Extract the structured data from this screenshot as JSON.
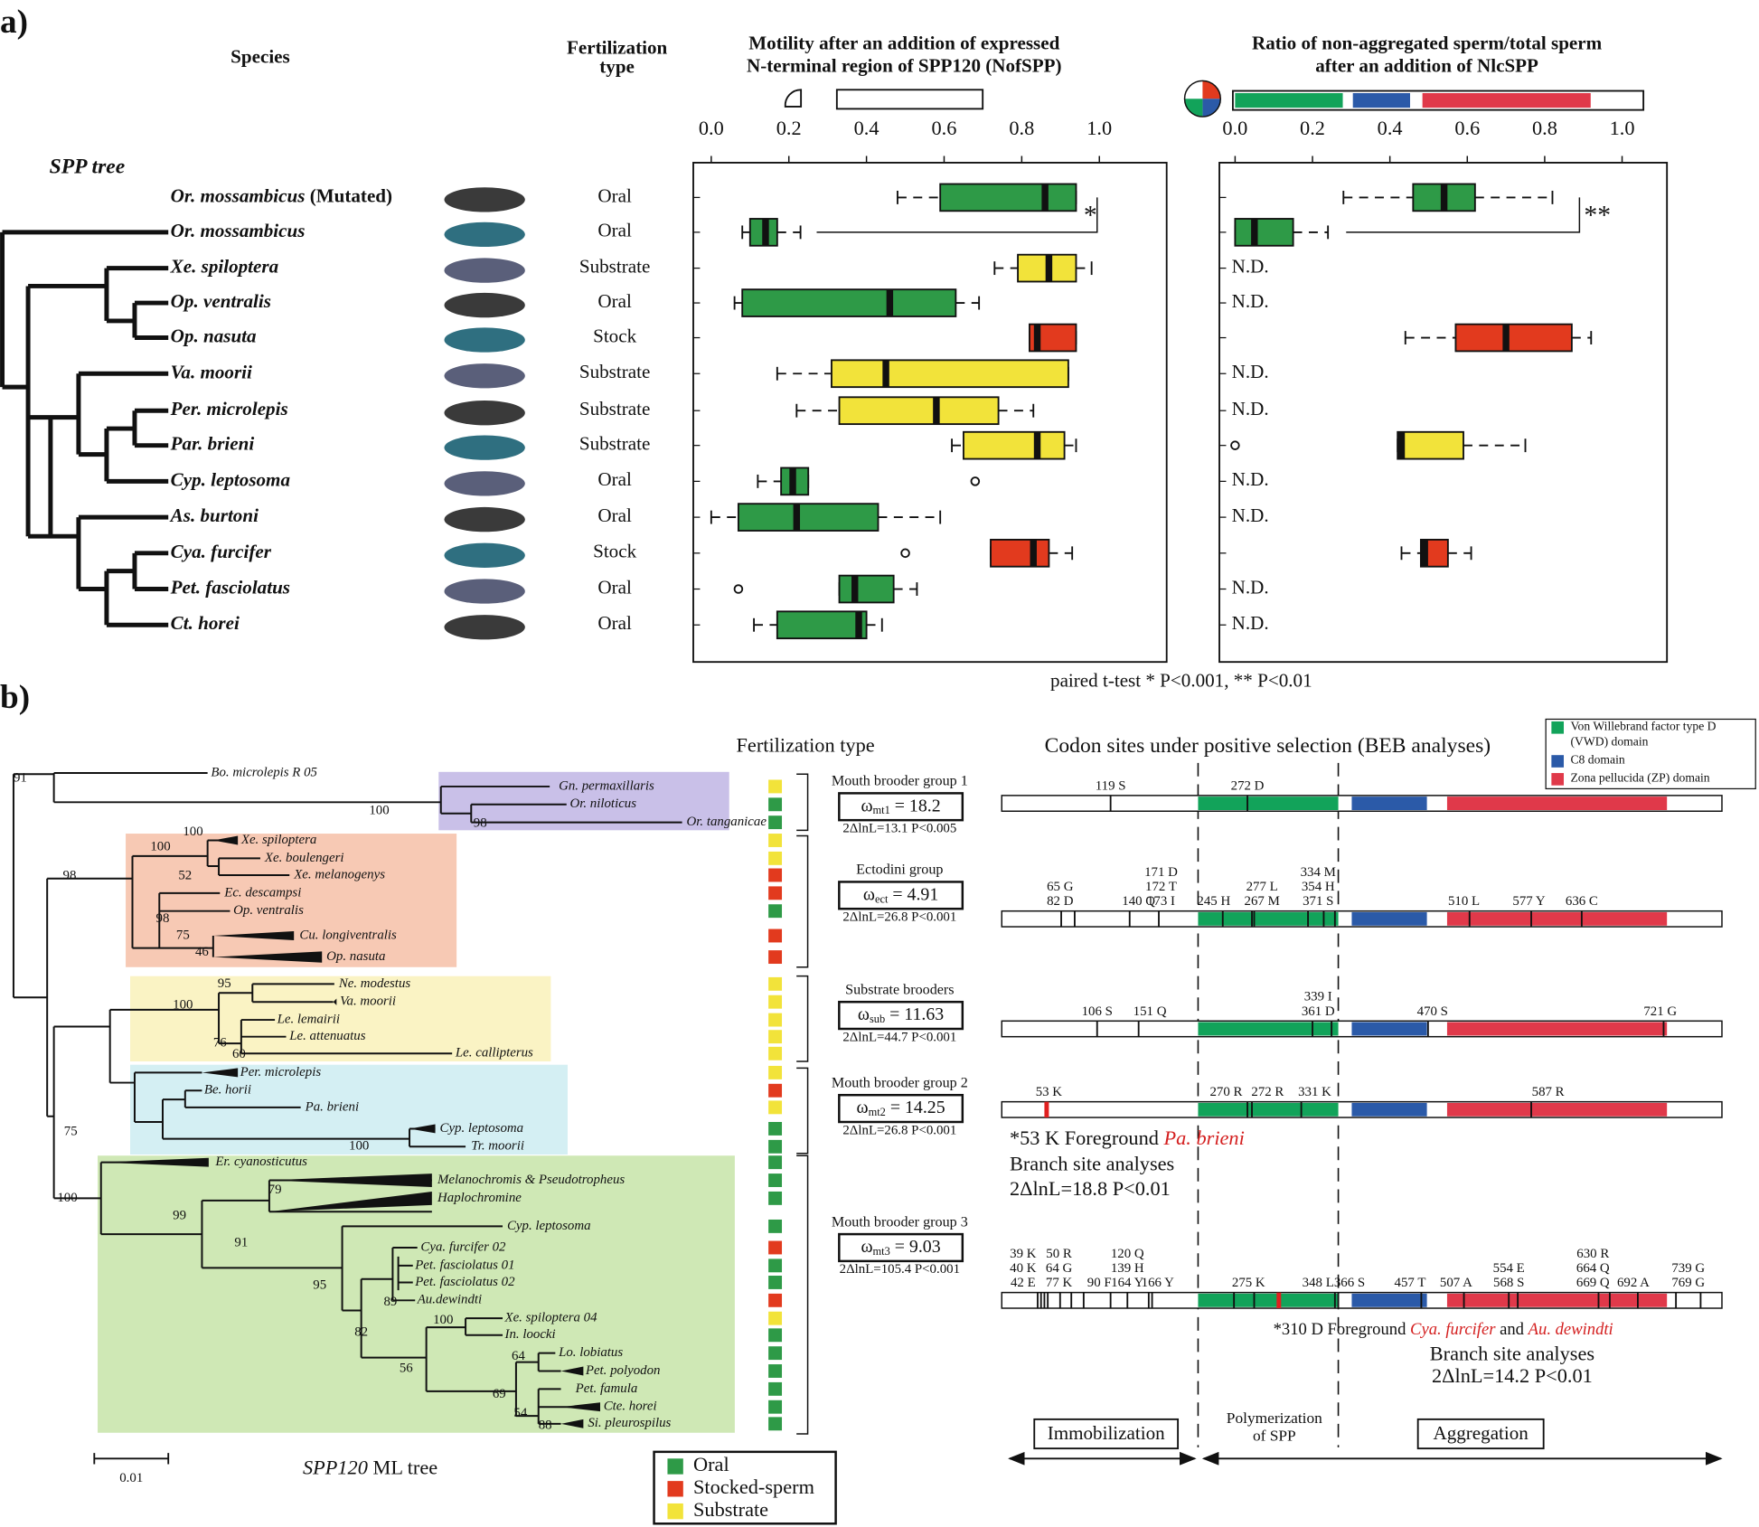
{
  "panel_a": {
    "label": "a)",
    "species_header": "Species",
    "fert_header": [
      "Fertilization",
      "type"
    ],
    "motility_header": [
      "Motility after an addition of expressed",
      "N-terminal region of SPP120 (NofSPP)"
    ],
    "ratio_header": [
      "Ratio of non-aggregated sperm/total sperm",
      "after an addition of NlcSPP"
    ],
    "tree_label": "SPP tree",
    "xlim": [
      0,
      1
    ],
    "xticks": [
      {
        "value": 0,
        "label": "0.0"
      },
      0.2,
      0.4,
      0.6,
      0.8,
      {
        "value": 1,
        "label": "1.0"
      }
    ],
    "rows": [
      {
        "species": "Or. mossambicus",
        "suffix": "(Mutated)",
        "fert": "Oral",
        "color": "#2e9a47",
        "motility": {
          "low": 0.48,
          "q1": 0.59,
          "median": 0.86,
          "q3": 0.94,
          "high": 0.94
        },
        "ratio": {
          "low": 0.28,
          "q1": 0.46,
          "median": 0.54,
          "q3": 0.62,
          "high": 0.82
        }
      },
      {
        "species": "Or. mossambicus",
        "fert": "Oral",
        "color": "#2e9a47",
        "motility": {
          "low": 0.08,
          "q1": 0.1,
          "median": 0.14,
          "q3": 0.17,
          "high": 0.23
        },
        "ratio": {
          "low": 0,
          "q1": 0,
          "median": 0.05,
          "q3": 0.15,
          "high": 0.24
        }
      },
      {
        "species": "Xe. spiloptera",
        "fert": "Substrate",
        "color": "#f2e33a",
        "motility": {
          "low": 0.73,
          "q1": 0.79,
          "median": 0.87,
          "q3": 0.94,
          "high": 0.98
        },
        "ratio": "N.D."
      },
      {
        "species": "Op. ventralis",
        "fert": "Oral",
        "color": "#2e9a47",
        "motility": {
          "low": 0.06,
          "q1": 0.08,
          "median": 0.46,
          "q3": 0.63,
          "high": 0.69
        },
        "ratio": "N.D."
      },
      {
        "species": "Op. nasuta",
        "fert": "Stock",
        "color": "#e23a1e",
        "motility": {
          "low": 0.82,
          "q1": 0.82,
          "median": 0.84,
          "q3": 0.94,
          "high": 0.94
        },
        "ratio": {
          "low": 0.44,
          "q1": 0.57,
          "median": 0.7,
          "q3": 0.87,
          "high": 0.92
        }
      },
      {
        "species": "Va. moorii",
        "fert": "Substrate",
        "color": "#f2e33a",
        "motility": {
          "low": 0.17,
          "q1": 0.31,
          "median": 0.45,
          "q3": 0.92,
          "high": 0.92
        },
        "ratio": "N.D."
      },
      {
        "species": "Per. microlepis",
        "fert": "Substrate",
        "color": "#f2e33a",
        "motility": {
          "low": 0.22,
          "q1": 0.33,
          "median": 0.58,
          "q3": 0.74,
          "high": 0.83
        },
        "ratio": "N.D."
      },
      {
        "species": "Par. brieni",
        "fert": "Substrate",
        "color": "#f2e33a",
        "motility": {
          "low": 0.62,
          "q1": 0.65,
          "median": 0.84,
          "q3": 0.91,
          "high": 0.94
        },
        "ratio": {
          "low": 0.42,
          "q1": 0.42,
          "median": 0.43,
          "q3": 0.59,
          "high": 0.75,
          "outliers": [
            0
          ]
        }
      },
      {
        "species": "Cyp. leptosoma",
        "fert": "Oral",
        "color": "#2e9a47",
        "motility": {
          "low": 0.12,
          "q1": 0.18,
          "median": 0.21,
          "q3": 0.25,
          "high": 0.25,
          "outliers": [
            0.68
          ]
        },
        "ratio": "N.D."
      },
      {
        "species": "As. burtoni",
        "fert": "Oral",
        "color": "#2e9a47",
        "motility": {
          "low": 0,
          "q1": 0.07,
          "median": 0.22,
          "q3": 0.43,
          "high": 0.59
        },
        "ratio": "N.D."
      },
      {
        "species": "Cya. furcifer",
        "fert": "Stock",
        "color": "#e23a1e",
        "motility": {
          "low": 0.72,
          "q1": 0.72,
          "median": 0.83,
          "q3": 0.87,
          "high": 0.93,
          "outliers": [
            0.5
          ]
        },
        "ratio": {
          "low": 0.43,
          "q1": 0.48,
          "median": 0.49,
          "q3": 0.55,
          "high": 0.61
        }
      },
      {
        "species": "Pet. fasciolatus",
        "fert": "Oral",
        "color": "#2e9a47",
        "motility": {
          "low": 0.33,
          "q1": 0.33,
          "median": 0.37,
          "q3": 0.47,
          "high": 0.53,
          "outliers": [
            0.07
          ]
        },
        "ratio": "N.D."
      },
      {
        "species": "Ct. horei",
        "fert": "Oral",
        "color": "#2e9a47",
        "motility": {
          "low": 0.11,
          "q1": 0.17,
          "median": 0.38,
          "q3": 0.4,
          "high": 0.44
        },
        "ratio": "N.D."
      }
    ],
    "sig_motility": "*",
    "sig_ratio": "**",
    "footnote": "paired t-test * P<0.001, ** P<0.01"
  },
  "panel_b": {
    "label": "b)",
    "fert_header": "Fertilization type",
    "tree_title": "SPP120",
    "tree_title_rest": "ML tree",
    "scale_label": "0.01",
    "tips": [
      {
        "label": "Bo. microlepis R 05"
      },
      {
        "label": "Gn. permaxillaris",
        "fert": 2
      },
      {
        "label": "Or. niloticus",
        "fert": 0
      },
      {
        "label": "Or. tanganicae",
        "fert": 0
      },
      {
        "label": "Xe. spiloptera",
        "fert": 2
      },
      {
        "label": "Xe. boulengeri",
        "fert": 2
      },
      {
        "label": "Xe. melanogenys",
        "fert": 1
      },
      {
        "label": "Ec. descampsi",
        "fert": 1
      },
      {
        "label": "Op. ventralis",
        "fert": 0,
        "color": "#d42020"
      },
      {
        "label": "Cu. longiventralis",
        "fert": 1
      },
      {
        "label": "Op. nasuta",
        "fert": 1
      },
      {
        "label": "Ne. modestus",
        "fert": 2
      },
      {
        "label": "Va. moorii",
        "fert": 2
      },
      {
        "label": "Le. lemairii",
        "fert": 2
      },
      {
        "label": "Le. attenuatus",
        "fert": 2
      },
      {
        "label": "Le. callipterus",
        "fert": 2
      },
      {
        "label": "Per. microlepis",
        "fert": 2
      },
      {
        "label": "Be. horii",
        "fert": 1
      },
      {
        "label": "Pa. brieni",
        "fert": 2,
        "color": "#d42020"
      },
      {
        "label": "Cyp. leptosoma",
        "fert": 0
      },
      {
        "label": "Tr. moorii",
        "fert": 0
      },
      {
        "label": "Er. cyanosticutus",
        "fert": 0
      },
      {
        "label": "Melanochromis & Pseudotropheus",
        "fert": 0,
        "italic": false
      },
      {
        "label": "Haplochromine",
        "fert": 0,
        "italic": false
      },
      {
        "label": "Cyp. leptosoma",
        "fert": 0
      },
      {
        "label": "Cya. furcifer 02",
        "fert": 1,
        "color": "#d42020"
      },
      {
        "label": "Pet. fasciolatus 01",
        "fert": 0,
        "italic": false
      },
      {
        "label": "Pet. fasciolatus 02",
        "fert": 0,
        "italic": false
      },
      {
        "label": "Au.dewindti",
        "fert": 1,
        "color": "#d42020"
      },
      {
        "label": "Xe. spiloptera 04",
        "fert": 2,
        "color": "#d42020"
      },
      {
        "label": "In. loocki",
        "fert": 0
      },
      {
        "label": "Lo. lobiatus",
        "fert": 0
      },
      {
        "label": "Pet. polyodon",
        "fert": 0
      },
      {
        "label": "Pet. famula",
        "fert": 0
      },
      {
        "label": "Cte. horei",
        "fert": 0
      },
      {
        "label": "Si. pleurospilus",
        "fert": 0
      }
    ],
    "bootstrap": [
      91,
      100,
      98,
      100,
      98,
      100,
      52,
      98,
      75,
      46,
      95,
      100,
      76,
      60,
      75,
      100,
      79,
      100,
      99,
      91,
      95,
      89,
      100,
      82,
      56,
      64,
      69,
      54,
      88
    ],
    "fert_legend": [
      {
        "label": "Oral",
        "color": "#2e9a47"
      },
      {
        "label": "Stocked-sperm",
        "color": "#e23a1e"
      },
      {
        "label": "Substrate",
        "color": "#f2e33a"
      }
    ],
    "groups": [
      {
        "title": "Mouth brooder group 1",
        "omega": "ω",
        "sub": "mt1",
        "value": "= 18.2",
        "stats": "2ΔlnL=13.1 P<0.005"
      },
      {
        "title": "Ectodini group",
        "omega": "ω",
        "sub": "ect",
        "value": "= 4.91",
        "stats": "2ΔlnL=26.8 P<0.001"
      },
      {
        "title": "Substrate brooders",
        "omega": "ω",
        "sub": "sub",
        "value": "= 11.63",
        "stats": "2ΔlnL=44.7 P<0.001"
      },
      {
        "title": "Mouth brooder group 2",
        "omega": "ω",
        "sub": "mt2",
        "value": "= 14.25",
        "stats": "2ΔlnL=26.8 P<0.001"
      },
      {
        "title": "Mouth brooder group 3",
        "omega": "ω",
        "sub": "mt3",
        "value": "= 9.03",
        "stats": "2ΔlnL=105.4 P<0.001"
      }
    ],
    "codon": {
      "title": "Codon sites under positive selection (BEB analyses)",
      "legend": [
        {
          "label": [
            "Von Willebrand factor type D",
            "(VWD) domain"
          ],
          "color": "#12a35a"
        },
        {
          "label": [
            "C8 domain"
          ],
          "color": "#2b5aa8"
        },
        {
          "label": [
            "Zona pellucida (ZP) domain"
          ],
          "color": "#e0394a"
        }
      ],
      "bars": [
        [
          [
            "119 S"
          ],
          [
            "272 D"
          ]
        ],
        [
          [
            "65 G",
            "82 D"
          ],
          [
            "140 Q"
          ],
          [
            "171 D",
            "172 T",
            "173 I"
          ],
          [
            "245 H"
          ],
          [
            "277 L",
            "267 M"
          ],
          [
            "334 M",
            "354 H",
            "371 S"
          ],
          [
            "510 L"
          ],
          [
            "577 Y"
          ],
          [
            "636 C"
          ]
        ],
        [
          [
            "106 S"
          ],
          [
            "151 Q"
          ],
          [
            "339 I",
            "361 D"
          ],
          [
            "470 S"
          ],
          [
            "721 G"
          ]
        ],
        [
          [
            "53 K"
          ],
          [
            "270 R"
          ],
          [
            "272 R"
          ],
          [
            "331 K"
          ],
          [
            "587 R"
          ]
        ],
        [
          [
            "39 K",
            "40 K",
            "42 E"
          ],
          [
            "50 R",
            "64 G",
            "77 K"
          ],
          [
            "90 F"
          ],
          [
            "120 Q",
            "139 H",
            "164 Y"
          ],
          [
            "166 Y"
          ],
          [
            "275 K"
          ],
          [
            "348 L"
          ],
          [
            "366 S"
          ],
          [
            "457 T"
          ],
          [
            "507 A"
          ],
          [
            "554 E",
            "568 S"
          ],
          [
            "630 R",
            "664 Q",
            "669 Q"
          ],
          [
            "692 A"
          ],
          [
            "739 G",
            "769 G"
          ]
        ]
      ],
      "note1": {
        "prefix": "*53 K  Foreground ",
        "red": "Pa. brieni",
        "lines": [
          "Branch site analyses",
          "2ΔlnL=18.8 P<0.01"
        ]
      },
      "note2": {
        "prefix": "*310 D  Foreground ",
        "red": "Cya. furcifer",
        "mid": " and ",
        "red2": "Au. dewindti",
        "lines": [
          "Branch site analyses",
          "2ΔlnL=14.2 P<0.01"
        ]
      },
      "immobilization": "Immobilization",
      "polymerization": [
        "Polymerization",
        "of SPP"
      ],
      "aggregation": "Aggregation"
    }
  }
}
